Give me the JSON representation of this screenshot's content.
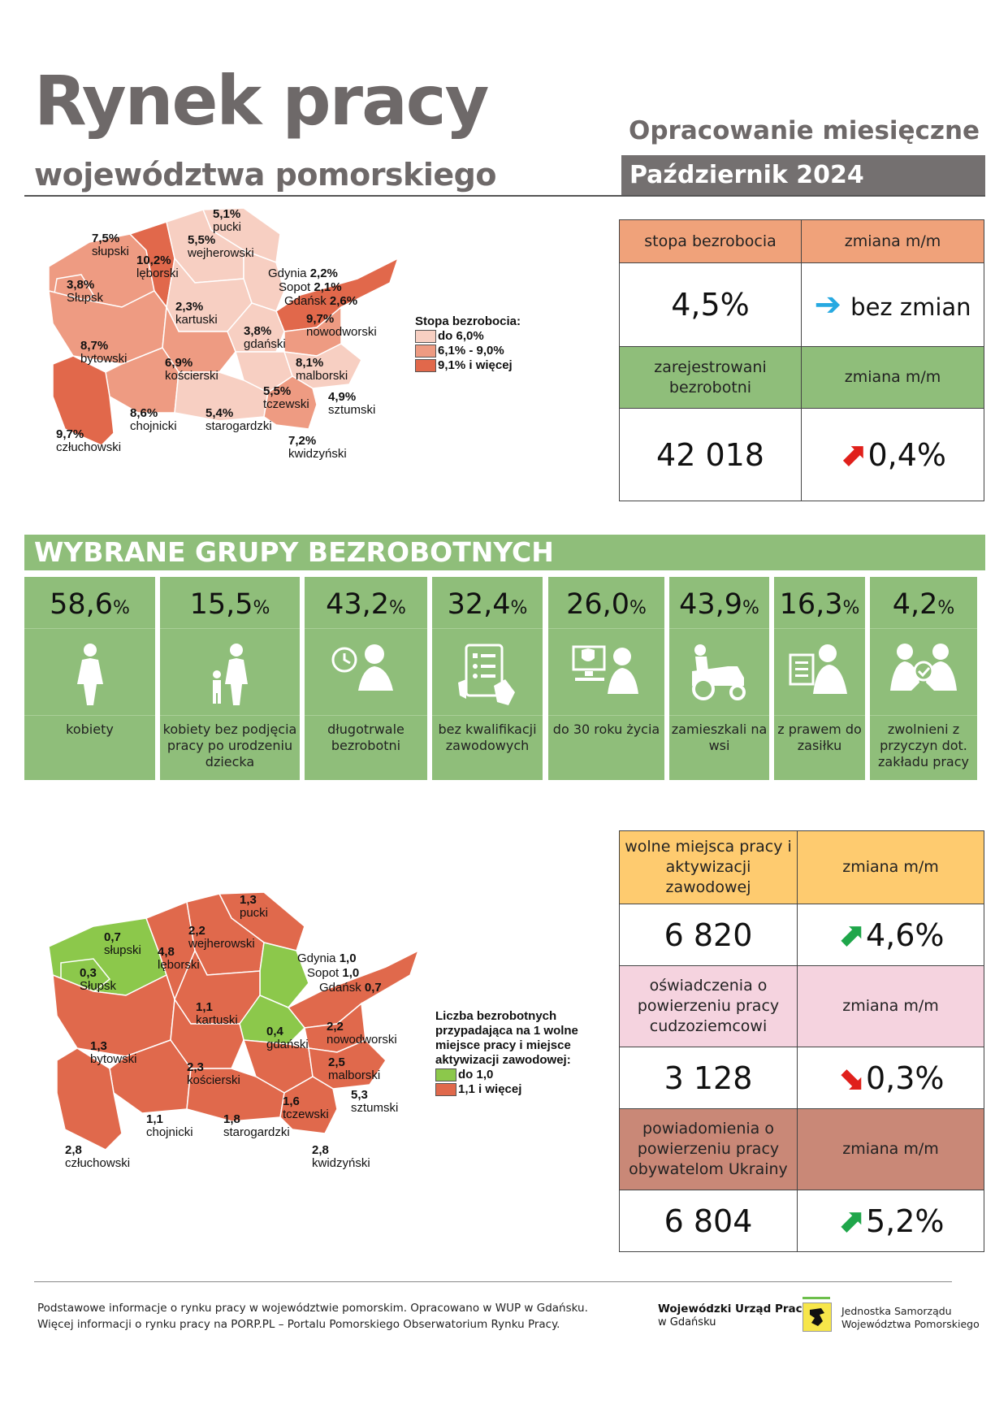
{
  "header": {
    "title": "Rynek pracy",
    "subtitle": "województwa pomorskiego",
    "report_type": "Opracowanie miesięczne",
    "period": "Październik 2024"
  },
  "kpi_top": {
    "rate_label": "stopa bezrobocia",
    "rate_change_label": "zmiana m/m",
    "rate_value": "4,5%",
    "rate_change_value": "bez zmian",
    "rate_change_icon": "arrow-right-icon",
    "registered_label": "zarejestrowani bezrobotni",
    "registered_change_label": "zmiana m/m",
    "registered_value": "42 018",
    "registered_change_value": "0,4%",
    "registered_change_icon": "arrow-up-right-icon",
    "colors": {
      "orange": "#f0a27a",
      "green": "#8fbe7a",
      "up_red": "#e0201b",
      "right_blue": "#27a9e1"
    }
  },
  "groups": {
    "title": "WYBRANE GRUPY BEZROBOTNYCH",
    "items": [
      {
        "value": "58,6",
        "unit": "%",
        "label": "kobiety",
        "icon": "woman-icon"
      },
      {
        "value": "15,5",
        "unit": "%",
        "label": "kobiety bez podjęcia pracy po urodzeniu dziecka",
        "icon": "mother-child-icon"
      },
      {
        "value": "43,2",
        "unit": "%",
        "label": "długotrwale bezrobotni",
        "icon": "clock-person-icon"
      },
      {
        "value": "32,4",
        "unit": "%",
        "label": "bez kwalifikacji zawodowych",
        "icon": "tablet-checklist-icon"
      },
      {
        "value": "26,0",
        "unit": "%",
        "label": "do 30 roku życia",
        "icon": "young-person-computer-icon"
      },
      {
        "value": "43,9",
        "unit": "%",
        "label": "zamieszkali na wsi",
        "icon": "tractor-icon"
      },
      {
        "value": "16,3",
        "unit": "%",
        "label": "z prawem do zasiłku",
        "icon": "benefit-document-icon"
      },
      {
        "value": "4,2",
        "unit": "%",
        "label": "zwolnieni z przyczyn dot. zakładu pracy",
        "icon": "handshake-dismissal-icon"
      }
    ]
  },
  "map1": {
    "legend_title": "Stopa bezrobocia:",
    "legend": [
      {
        "label": "do 6,0%",
        "color": "#f7cfc2"
      },
      {
        "label": "6,1% - 9,0%",
        "color": "#ee9b82"
      },
      {
        "label": "9,1% i więcej",
        "color": "#e1684b"
      }
    ],
    "regions": [
      {
        "value": "5,1%",
        "name": "pucki"
      },
      {
        "value": "7,5%",
        "name": "słupski"
      },
      {
        "value": "5,5%",
        "name": "wejherowski"
      },
      {
        "value": "10,2%",
        "name": "lęborski"
      },
      {
        "value": "3,8%",
        "name": "Słupsk"
      },
      {
        "value": "2,2%",
        "name": "Gdynia"
      },
      {
        "value": "2,1%",
        "name": "Sopot"
      },
      {
        "value": "2,6%",
        "name": "Gdańsk"
      },
      {
        "value": "2,3%",
        "name": "kartuski"
      },
      {
        "value": "9,7%",
        "name": "nowodworski"
      },
      {
        "value": "3,8%",
        "name": "gdański"
      },
      {
        "value": "8,7%",
        "name": "bytowski"
      },
      {
        "value": "6,9%",
        "name": "kościerski"
      },
      {
        "value": "8,1%",
        "name": "malborski"
      },
      {
        "value": "5,5%",
        "name": "tczewski"
      },
      {
        "value": "4,9%",
        "name": "sztumski"
      },
      {
        "value": "8,6%",
        "name": "chojnicki"
      },
      {
        "value": "5,4%",
        "name": "starogardzki"
      },
      {
        "value": "9,7%",
        "name": "człuchowski"
      },
      {
        "value": "7,2%",
        "name": "kwidzyński"
      }
    ]
  },
  "map2": {
    "legend_title": "Liczba bezrobotnych przypadająca na 1 wolne miejsce pracy i miejsce aktywizacji zawodowej:",
    "legend": [
      {
        "label": "do 1,0",
        "color": "#8cc84b"
      },
      {
        "label": "1,1 i więcej",
        "color": "#e0694c"
      }
    ],
    "regions": [
      {
        "value": "1,3",
        "name": "pucki"
      },
      {
        "value": "0,7",
        "name": "słupski"
      },
      {
        "value": "2,2",
        "name": "wejherowski"
      },
      {
        "value": "4,8",
        "name": "lęborski"
      },
      {
        "value": "0,3",
        "name": "Słupsk"
      },
      {
        "value": "1,0",
        "name": "Gdynia"
      },
      {
        "value": "1,0",
        "name": "Sopot"
      },
      {
        "value": "0,7",
        "name": "Gdańsk"
      },
      {
        "value": "1,1",
        "name": "kartuski"
      },
      {
        "value": "0,4",
        "name": "gdański"
      },
      {
        "value": "2,2",
        "name": "nowodworski"
      },
      {
        "value": "1,3",
        "name": "bytowski"
      },
      {
        "value": "2,3",
        "name": "kościerski"
      },
      {
        "value": "2,5",
        "name": "malborski"
      },
      {
        "value": "1,6",
        "name": "tczewski"
      },
      {
        "value": "5,3",
        "name": "sztumski"
      },
      {
        "value": "1,1",
        "name": "chojnicki"
      },
      {
        "value": "1,8",
        "name": "starogardzki"
      },
      {
        "value": "2,8",
        "name": "człuchowski"
      },
      {
        "value": "2,8",
        "name": "kwidzyński"
      }
    ]
  },
  "kpi_bottom": [
    {
      "label": "wolne miejsca pracy i aktywizacji zawodowej",
      "change_label": "zmiana m/m",
      "value": "6 820",
      "change": "4,6%",
      "icon": "arrow-up-right-icon",
      "color": "#fecb6f"
    },
    {
      "label": "oświadczenia o powierzeniu pracy cudzoziemcowi",
      "change_label": "zmiana m/m",
      "value": "3 128",
      "change": "0,3%",
      "icon": "arrow-down-right-icon",
      "color": "#f5d3df"
    },
    {
      "label": "powiadomienia o powierzeniu pracy obywatelom Ukrainy",
      "change_label": "zmiana m/m",
      "value": "6 804",
      "change": "5,2%",
      "icon": "arrow-up-right-icon",
      "color": "#c98877"
    }
  ],
  "footer": {
    "line1": "Podstawowe informacje o rynku pracy w województwie pomorskim. Opracowano w WUP w Gdańsku.",
    "line2": "Więcej informacji o rynku pracy na PORP.PL – Portalu Pomorskiego Obserwatorium Rynku Pracy.",
    "org1_line1": "Wojewódzki Urząd Pracy",
    "org1_line2": "w Gdańsku",
    "org2_line1": "Jednostka Samorządu",
    "org2_line2": "Województwa Pomorskiego"
  }
}
